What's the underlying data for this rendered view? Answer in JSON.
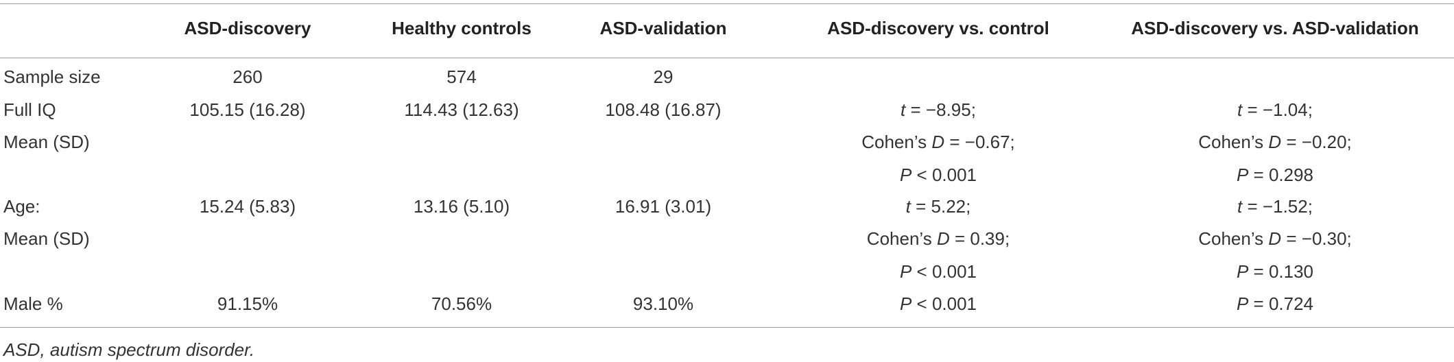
{
  "table": {
    "header": [
      "ASD-discovery",
      "Healthy controls",
      "ASD-validation",
      "ASD-discovery vs. control",
      "ASD-discovery vs. ASD-validation"
    ],
    "rows": [
      {
        "label": [
          "Sample size"
        ],
        "values": [
          "260",
          "574",
          "29"
        ]
      },
      {
        "label": [
          "Full IQ",
          "Mean (SD)"
        ],
        "values": [
          "105.15 (16.28)",
          "114.43 (12.63)",
          "108.48 (16.87)"
        ],
        "tests": [
          [
            {
              "var": "t",
              "text": " = −8.95;"
            },
            {
              "pre": "Cohen’s ",
              "var": "D",
              "text": " = −0.67;"
            },
            {
              "var": "P",
              "text": " < 0.001"
            }
          ],
          [
            {
              "var": "t",
              "text": " = −1.04;"
            },
            {
              "pre": "Cohen’s ",
              "var": "D",
              "text": " = −0.20;"
            },
            {
              "var": "P",
              "text": " = 0.298"
            }
          ]
        ]
      },
      {
        "label": [
          "Age:",
          "Mean (SD)"
        ],
        "values": [
          "15.24 (5.83)",
          "13.16 (5.10)",
          "16.91 (3.01)"
        ],
        "tests": [
          [
            {
              "var": "t",
              "text": " = 5.22;"
            },
            {
              "pre": "Cohen’s ",
              "var": "D",
              "text": " = 0.39;"
            },
            {
              "var": "P",
              "text": " < 0.001"
            }
          ],
          [
            {
              "var": "t",
              "text": " = −1.52;"
            },
            {
              "pre": "Cohen’s ",
              "var": "D",
              "text": " = −0.30;"
            },
            {
              "var": "P",
              "text": " = 0.130"
            }
          ]
        ]
      },
      {
        "label": [
          "Male %"
        ],
        "values": [
          "91.15%",
          "70.56%",
          "93.10%"
        ],
        "tests": [
          [
            {
              "var": "P",
              "text": " < 0.001"
            }
          ],
          [
            {
              "var": "P",
              "text": " = 0.724"
            }
          ]
        ]
      }
    ],
    "footnote": "ASD, autism spectrum disorder."
  }
}
